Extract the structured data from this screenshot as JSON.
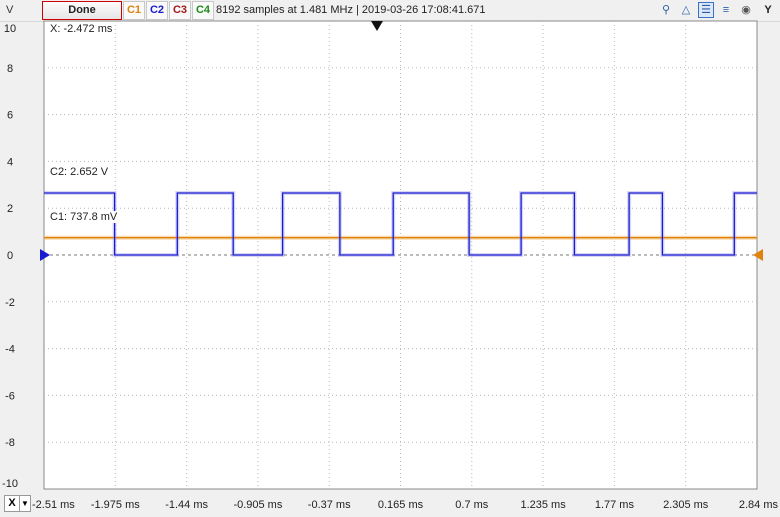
{
  "toolbar": {
    "y_unit": "V",
    "done_label": "Done",
    "channels": [
      {
        "label": "C1",
        "color": "#e0820e"
      },
      {
        "label": "C2",
        "color": "#1a1ad0"
      },
      {
        "label": "C3",
        "color": "#a01818"
      },
      {
        "label": "C4",
        "color": "#1a8a1a"
      }
    ],
    "status": "8192 samples at 1.481 MHz | 2019-03-26 17:08:41.671",
    "icons": [
      "zoom-icon",
      "cursor-icon",
      "cursor-horizontal-icon",
      "cursor-vertical-icon",
      "camera-icon",
      "y-icon"
    ],
    "y_button": "Y"
  },
  "plot": {
    "y_ticks": [
      "10",
      "8",
      "6",
      "4",
      "2",
      "0",
      "-2",
      "-4",
      "-6",
      "-8",
      "-10"
    ],
    "x_ticks": [
      "-2.51 ms",
      "-1.975 ms",
      "-1.44 ms",
      "-0.905 ms",
      "-0.37 ms",
      "0.165 ms",
      "0.7 ms",
      "1.235 ms",
      "1.77 ms",
      "2.305 ms",
      "2.84 ms"
    ],
    "x_button": "X",
    "annotations": {
      "cursor_x": "X: -2.472 ms",
      "c2": "C2: 2.652 V",
      "c1": "C1: 737.8 mV"
    }
  },
  "chart_data": {
    "type": "line",
    "xlim": [
      -2.51,
      2.84
    ],
    "ylim": [
      -10,
      10
    ],
    "xlabel": "",
    "ylabel": "V",
    "grid": true,
    "series": [
      {
        "name": "C1",
        "color": "#e0820e",
        "x": [
          -2.51,
          2.84
        ],
        "y": [
          0.74,
          0.74
        ]
      },
      {
        "name": "C2",
        "color": "#1a1ad0",
        "x": [
          -2.51,
          -1.98,
          -1.98,
          -1.51,
          -1.51,
          -1.09,
          -1.09,
          -0.72,
          -0.72,
          -0.29,
          -0.29,
          0.11,
          0.11,
          0.68,
          0.68,
          1.07,
          1.07,
          1.47,
          1.47,
          1.88,
          1.88,
          2.13,
          2.13,
          2.67,
          2.67,
          2.84
        ],
        "y": [
          2.65,
          2.65,
          0,
          0,
          2.65,
          2.65,
          0,
          0,
          2.65,
          2.65,
          0,
          0,
          2.65,
          2.65,
          0,
          0,
          2.65,
          2.65,
          0,
          0,
          2.65,
          2.65,
          0,
          0,
          2.65,
          2.65
        ]
      }
    ]
  }
}
